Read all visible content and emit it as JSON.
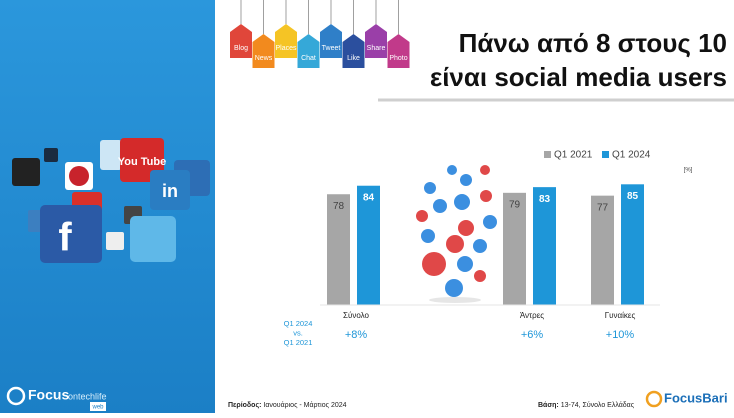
{
  "header": {
    "title_line1": "Πάνω από 8 στους 10",
    "title_line2": "είναι social media users",
    "tags": [
      "Blog",
      "News",
      "Places",
      "Chat",
      "Tweet",
      "Like",
      "Share",
      "Photo"
    ]
  },
  "sidebar": {
    "icons": [
      "f",
      "in",
      "You Tube"
    ],
    "logo": "Focus",
    "logo_sub": "ontechlife",
    "logo_web": "web"
  },
  "chart_data": {
    "type": "bar",
    "categories": [
      "Σύνολο",
      "Άντρες",
      "Γυναίκες"
    ],
    "series": [
      {
        "name": "Q1 2021",
        "color": "#a6a6a6",
        "values": [
          78,
          79,
          77
        ]
      },
      {
        "name": "Q1 2024",
        "color": "#1e96d8",
        "values": [
          84,
          83,
          85
        ]
      }
    ],
    "unit": "[%]",
    "change": {
      "label": [
        "Q1 2024",
        "vs.",
        "Q1 2021"
      ],
      "values": [
        8,
        6,
        10
      ],
      "value_labels": [
        "+8%",
        "+6%",
        "+10%"
      ],
      "color": "#1e96d8"
    }
  },
  "footer": {
    "period_label": "Περίοδος:",
    "period": "Ιανουάριος - Μάρτιος 2024",
    "base_label": "Βάση:",
    "base": "13-74, Σύνολο Ελλάδας",
    "logo": "FocusBari"
  }
}
